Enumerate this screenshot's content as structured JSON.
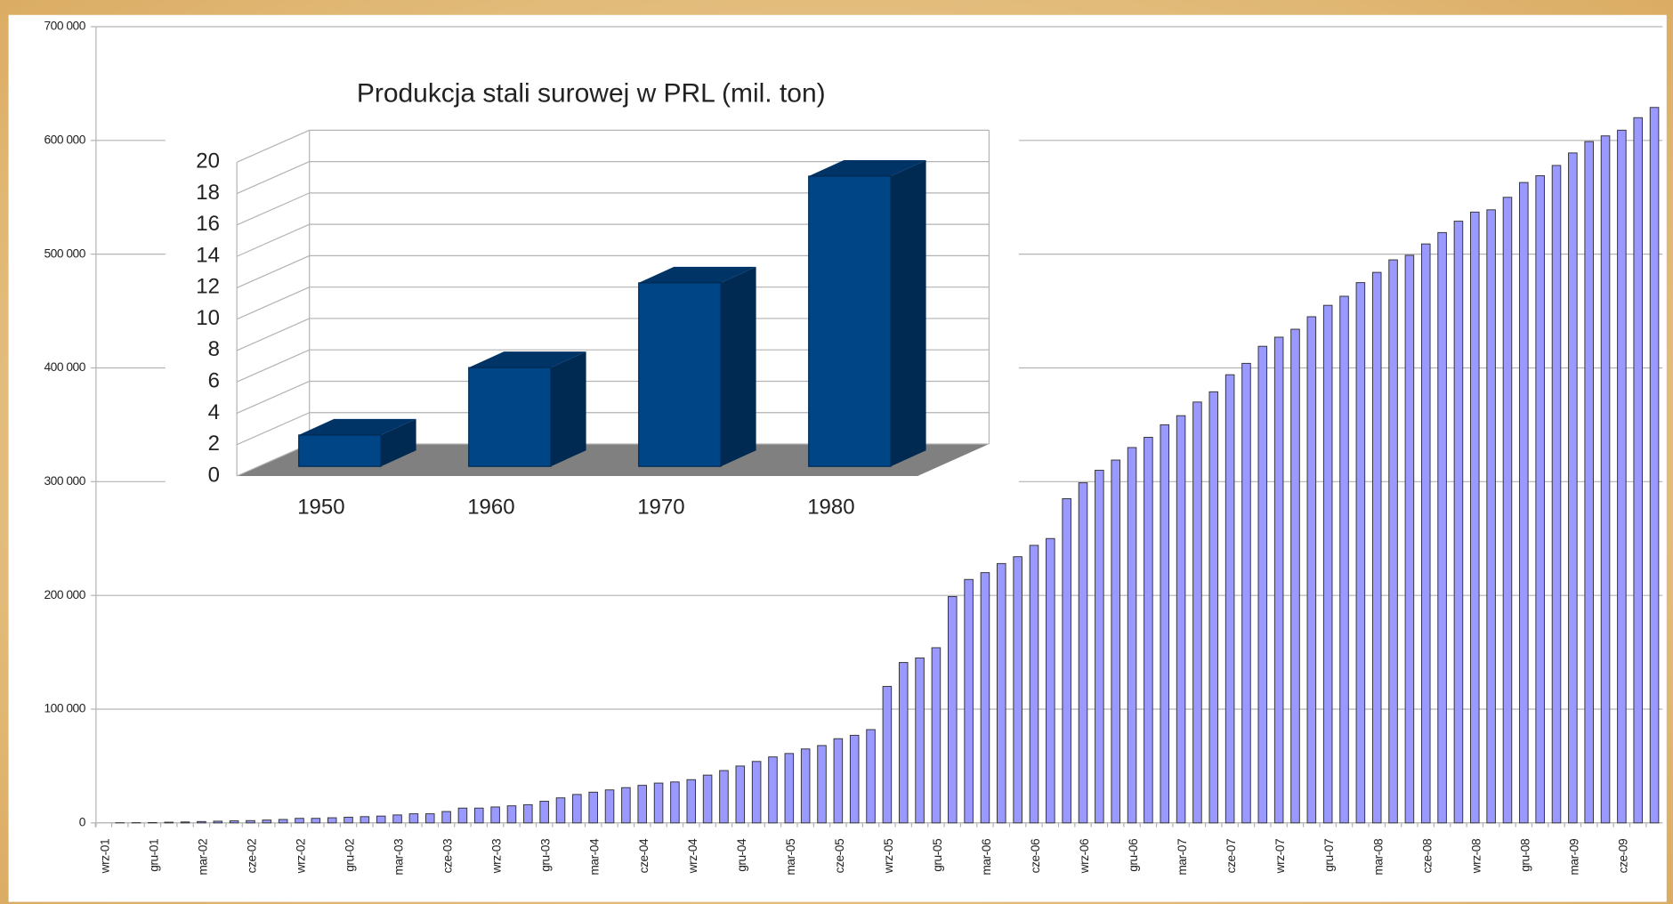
{
  "chart_data": [
    {
      "type": "bar",
      "categories": [
        "wrz-01",
        null,
        null,
        "gru-01",
        null,
        null,
        "mar-02",
        null,
        null,
        "cze-02",
        null,
        null,
        "wrz-02",
        null,
        null,
        "gru-02",
        null,
        null,
        "mar-03",
        null,
        null,
        "cze-03",
        null,
        null,
        "wrz-03",
        null,
        null,
        "gru-03",
        null,
        null,
        "mar-04",
        null,
        null,
        "cze-04",
        null,
        null,
        "wrz-04",
        null,
        null,
        "gru-04",
        null,
        null,
        "mar-05",
        null,
        null,
        "cze-05",
        null,
        null,
        "wrz-05",
        null,
        null,
        "gru-05",
        null,
        null,
        "mar-06",
        null,
        null,
        "cze-06",
        null,
        null,
        "wrz-06",
        null,
        null,
        "gru-06",
        null,
        null,
        "mar-07",
        null,
        null,
        "cze-07",
        null,
        null,
        "wrz-07",
        null,
        null,
        "gru-07",
        null,
        null,
        "mar-08",
        null,
        null,
        "cze-08",
        null,
        null,
        "wrz-08",
        null,
        null,
        "gru-08",
        null,
        null,
        "mar-09",
        null,
        null,
        "cze-09",
        null,
        null
      ],
      "values": [
        0,
        100,
        200,
        300,
        600,
        800,
        1200,
        1500,
        1800,
        2000,
        2500,
        3000,
        4000,
        4000,
        4500,
        5000,
        5500,
        6000,
        7000,
        8000,
        8000,
        10000,
        13000,
        13000,
        14000,
        15000,
        16000,
        19000,
        22000,
        25000,
        27000,
        29000,
        31000,
        33000,
        35000,
        36000,
        38000,
        42000,
        46000,
        50000,
        54000,
        58000,
        61000,
        65000,
        68000,
        74000,
        77000,
        82000,
        120000,
        141000,
        145000,
        154000,
        199000,
        214000,
        220000,
        228000,
        234000,
        244000,
        250000,
        285000,
        299000,
        310000,
        319000,
        330000,
        339000,
        350000,
        358000,
        370000,
        379000,
        394000,
        404000,
        419000,
        427000,
        434000,
        445000,
        455000,
        463000,
        475000,
        484000,
        495000,
        499000,
        509000,
        519000,
        529000,
        537000,
        539000,
        550000,
        563000,
        569000,
        578000,
        589000,
        599000,
        604000,
        609000,
        620000,
        629000
      ],
      "color": "#9999ff",
      "ylim": [
        0,
        700000
      ],
      "yticks": [
        0,
        {
          "value": 100000,
          "label": "100 000"
        },
        {
          "value": 200000,
          "label": "200 000"
        },
        {
          "value": 300000,
          "label": "300 000"
        },
        {
          "value": 400000,
          "label": "400 000"
        },
        {
          "value": 500000,
          "label": "500 000"
        },
        {
          "value": 600000,
          "label": "600 000"
        },
        {
          "value": 700000,
          "label": "700 000"
        }
      ],
      "grid": true
    },
    {
      "type": "bar3d",
      "title": "Produkcja stali surowej w PRL (mil. ton)",
      "categories": [
        "1950",
        "1960",
        "1970",
        "1980"
      ],
      "values": [
        2,
        6.3,
        11.7,
        18.5
      ],
      "color": "#004586",
      "ylim": [
        0,
        20
      ],
      "yticks": [
        0,
        2,
        4,
        6,
        8,
        10,
        12,
        14,
        16,
        18,
        20
      ],
      "grid": true
    }
  ]
}
